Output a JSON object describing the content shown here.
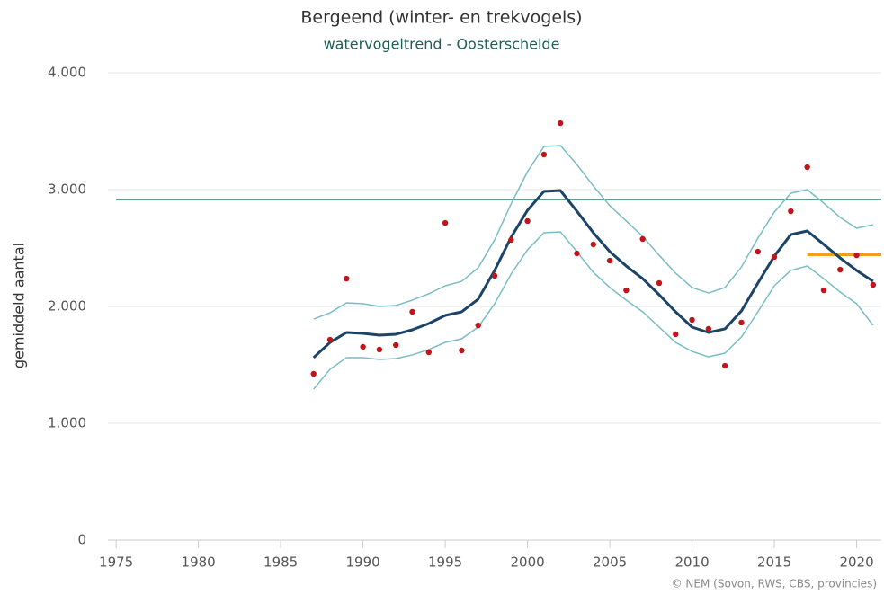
{
  "chart_data": {
    "type": "line",
    "title": "Bergeend (winter- en trekvogels)",
    "subtitle": "watervogeltrend - Oosterschelde",
    "y_label": "gemiddeld aantal",
    "credit": "© NEM (Sovon, RWS, CBS, provincies)",
    "x": [
      1987,
      1988,
      1989,
      1990,
      1991,
      1992,
      1993,
      1994,
      1995,
      1996,
      1997,
      1998,
      1999,
      2000,
      2001,
      2002,
      2003,
      2004,
      2005,
      2006,
      2007,
      2008,
      2009,
      2010,
      2011,
      2012,
      2013,
      2014,
      2015,
      2016,
      2017,
      2018,
      2019,
      2020,
      2021
    ],
    "series": [
      {
        "type": "line",
        "color": "#79bcc4",
        "width": 1.5,
        "values": [
          1892,
          1946,
          2031,
          2023,
          2000,
          2008,
          2054,
          2108,
          2177,
          2215,
          2331,
          2569,
          2877,
          3154,
          3369,
          3377,
          3215,
          3031,
          2862,
          2731,
          2600,
          2438,
          2285,
          2162,
          2115,
          2162,
          2338,
          2585,
          2808,
          2969,
          3000,
          2885,
          2762,
          2669,
          2700
        ]
      },
      {
        "type": "line",
        "color": "#79bcc4",
        "width": 1.5,
        "values": [
          1292,
          1462,
          1562,
          1562,
          1546,
          1554,
          1585,
          1631,
          1692,
          1723,
          1823,
          2023,
          2277,
          2485,
          2631,
          2638,
          2469,
          2292,
          2162,
          2054,
          1954,
          1823,
          1692,
          1615,
          1569,
          1600,
          1738,
          1954,
          2177,
          2308,
          2346,
          2238,
          2123,
          2023,
          1838
        ]
      },
      {
        "type": "line",
        "color": "#1b4466",
        "width": 3,
        "values": [
          1562,
          1692,
          1777,
          1769,
          1754,
          1762,
          1800,
          1854,
          1923,
          1954,
          2062,
          2308,
          2592,
          2823,
          2985,
          2992,
          2815,
          2631,
          2469,
          2346,
          2238,
          2100,
          1954,
          1823,
          1777,
          1808,
          1962,
          2200,
          2431,
          2615,
          2646,
          2531,
          2415,
          2308,
          2215
        ]
      },
      {
        "type": "scatter",
        "color": "#c0151b",
        "values": [
          1423,
          1715,
          2238,
          1654,
          1631,
          1669,
          1954,
          1608,
          2715,
          1623,
          1838,
          2262,
          2569,
          2731,
          3300,
          3569,
          2454,
          2531,
          2392,
          2138,
          2577,
          2200,
          1762,
          1885,
          1808,
          1492,
          1862,
          2469,
          2423,
          2815,
          3192,
          2138,
          2315,
          2438,
          2185
        ]
      }
    ],
    "reference_lines": [
      {
        "color": "#2e7d62",
        "width": 1.5,
        "value": 2915,
        "x": [
          1975,
          2021.5
        ]
      },
      {
        "color": "#f0a020",
        "width": 4,
        "value": 2446,
        "x": [
          2017,
          2021.5
        ]
      }
    ],
    "xlim": [
      1974.5,
      2021.5
    ],
    "xticks": [
      1975,
      1980,
      1985,
      1990,
      1995,
      2000,
      2005,
      2010,
      2015,
      2020
    ],
    "ylim": [
      0,
      4000
    ],
    "yticks": [
      0,
      {
        "value": 1000,
        "label": "1.000"
      },
      {
        "value": 2000,
        "label": "2.000"
      },
      {
        "value": 3000,
        "label": "3.000"
      },
      {
        "value": 4000,
        "label": "4.000"
      }
    ],
    "grid": true
  }
}
